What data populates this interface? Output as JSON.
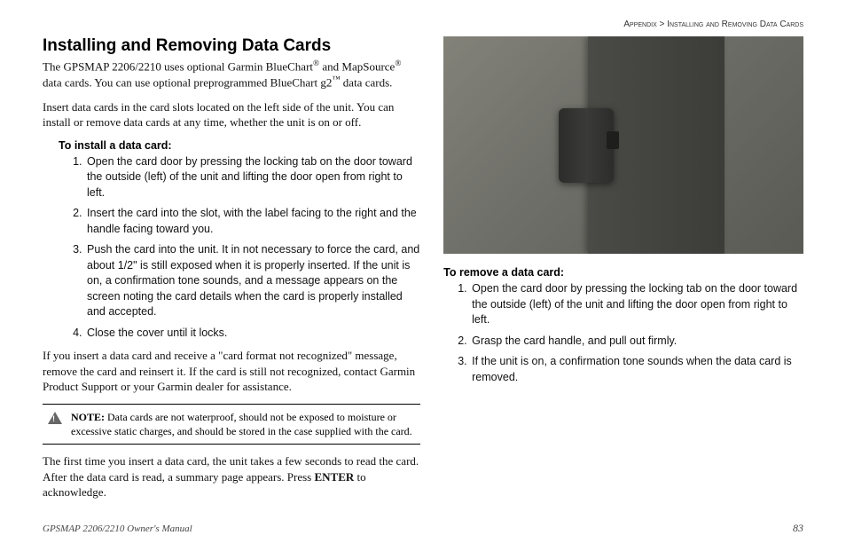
{
  "breadcrumb": {
    "section": "Appendix",
    "sep": " > ",
    "sub": "Installing and Removing Data Cards"
  },
  "title": "Installing and Removing Data Cards",
  "intro1_a": "The GPSMAP 2206/2210 uses optional Garmin BlueChart",
  "intro1_b": " and MapSource",
  "intro1_c": " data cards. You can use optional preprogrammed BlueChart g2",
  "intro1_d": " data cards.",
  "intro2": "Insert data cards in the card slots located on the left side of the unit. You can install or remove data cards at any time, whether the unit is on or off.",
  "install": {
    "head": "To install a data card:",
    "steps": [
      "Open the card door by pressing the locking tab on the door toward the outside (left) of the unit and lifting the door open from right to left.",
      "Insert the card into the slot, with the label facing to the right and the handle facing toward you.",
      "Push the card into the unit. It in not necessary to force the card, and about 1/2\" is still exposed when it is properly inserted. If the unit is on, a confirmation tone sounds, and a message appears on the screen noting the card details when the card is properly installed and accepted.",
      "Close the cover until it locks."
    ]
  },
  "after_install": "If you insert a data card and receive a \"card format not recognized\" message, remove the card and reinsert it. If the card is still not recognized, contact Garmin Product Support or your Garmin dealer for assistance.",
  "note": {
    "label": "NOTE:",
    "text": " Data cards are not waterproof, should not be exposed to moisture or excessive static charges, and should be stored in the case supplied with the card."
  },
  "firsttime_a": "The first time you insert a data card, the unit takes a few seconds to read the card. After the data card is read, a summary page appears. Press ",
  "firsttime_enter": "ENTER",
  "firsttime_b": " to acknowledge.",
  "remove": {
    "head": "To remove a data card:",
    "steps": [
      "Open the card door by pressing the locking tab on the door toward the outside (left) of the unit and lifting the door open from right to left.",
      "Grasp the card handle, and pull out firmly.",
      "If the unit is on, a confirmation tone sounds when the data card is removed."
    ]
  },
  "footer": {
    "left": "GPSMAP 2206/2210 Owner's Manual",
    "page": "83"
  }
}
